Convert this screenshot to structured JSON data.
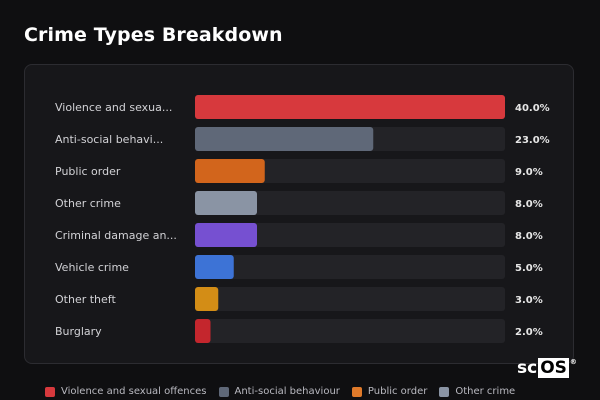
{
  "title": "Crime Types Breakdown",
  "colors": {
    "track": "#232327",
    "background": "#0f0f11",
    "panel": "#17171a"
  },
  "chart_data": {
    "type": "bar",
    "orientation": "horizontal",
    "title": "Crime Types Breakdown",
    "xlim": [
      0,
      40
    ],
    "categories": [
      "Violence and sexua...",
      "Anti-social behavi...",
      "Public order",
      "Other crime",
      "Criminal damage an...",
      "Vehicle crime",
      "Other theft",
      "Burglary"
    ],
    "values": [
      40.0,
      23.0,
      9.0,
      8.0,
      8.0,
      5.0,
      3.0,
      2.0
    ],
    "value_labels": [
      "40.0%",
      "23.0%",
      "9.0%",
      "8.0%",
      "8.0%",
      "5.0%",
      "3.0%",
      "2.0%"
    ],
    "colors": [
      "#d7393d",
      "#5f6878",
      "#d2651c",
      "#8a94a4",
      "#7650d1",
      "#3d73d6",
      "#d38d16",
      "#c4262d"
    ]
  },
  "legend": [
    {
      "label": "Violence and sexual offences",
      "color": "#d7393d"
    },
    {
      "label": "Anti-social behaviour",
      "color": "#5f6878"
    },
    {
      "label": "Public order",
      "color": "#e07a2a"
    },
    {
      "label": "Other crime",
      "color": "#8a94a4"
    }
  ],
  "logo": {
    "text_left": "sc",
    "text_box": "OS",
    "mark": "®"
  }
}
